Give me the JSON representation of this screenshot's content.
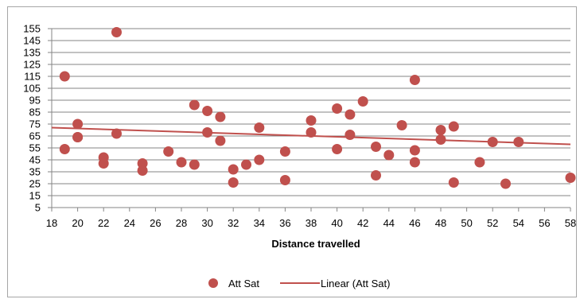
{
  "chart_data": {
    "type": "scatter",
    "title": "",
    "xlabel": "Distance travelled",
    "ylabel": "",
    "xlim": [
      18,
      58
    ],
    "ylim": [
      5,
      155
    ],
    "x_ticks": [
      18,
      20,
      22,
      24,
      26,
      28,
      30,
      32,
      34,
      36,
      38,
      40,
      42,
      44,
      46,
      48,
      50,
      52,
      54,
      56,
      58
    ],
    "y_ticks": [
      5,
      15,
      25,
      35,
      45,
      55,
      65,
      75,
      85,
      95,
      105,
      115,
      125,
      135,
      145,
      155
    ],
    "grid": "horizontal",
    "legend_position": "bottom",
    "series": [
      {
        "name": "Att Sat",
        "color": "#c0504d",
        "marker": "circle",
        "points": [
          [
            19,
            115
          ],
          [
            19,
            54
          ],
          [
            20,
            75
          ],
          [
            20,
            64
          ],
          [
            20,
            64
          ],
          [
            22,
            47
          ],
          [
            22,
            42
          ],
          [
            23,
            152
          ],
          [
            23,
            67
          ],
          [
            25,
            42
          ],
          [
            25,
            36
          ],
          [
            27,
            52
          ],
          [
            28,
            43
          ],
          [
            29,
            91
          ],
          [
            29,
            41
          ],
          [
            30,
            86
          ],
          [
            30,
            68
          ],
          [
            31,
            81
          ],
          [
            31,
            61
          ],
          [
            32,
            37
          ],
          [
            32,
            26
          ],
          [
            33,
            41
          ],
          [
            34,
            72
          ],
          [
            34,
            45
          ],
          [
            36,
            52
          ],
          [
            36,
            28
          ],
          [
            38,
            78
          ],
          [
            38,
            68
          ],
          [
            40,
            88
          ],
          [
            40,
            54
          ],
          [
            41,
            83
          ],
          [
            41,
            66
          ],
          [
            42,
            94
          ],
          [
            43,
            56
          ],
          [
            43,
            32
          ],
          [
            44,
            49
          ],
          [
            45,
            74
          ],
          [
            46,
            112
          ],
          [
            46,
            53
          ],
          [
            46,
            43
          ],
          [
            48,
            70
          ],
          [
            48,
            62
          ],
          [
            49,
            73
          ],
          [
            49,
            26
          ],
          [
            51,
            43
          ],
          [
            52,
            60
          ],
          [
            53,
            25
          ],
          [
            54,
            60
          ],
          [
            58,
            30
          ]
        ]
      }
    ],
    "trendline": {
      "name": "Linear (Att Sat)",
      "color": "#c0504d",
      "type": "linear",
      "start": [
        18,
        72
      ],
      "end": [
        58,
        58
      ]
    }
  }
}
